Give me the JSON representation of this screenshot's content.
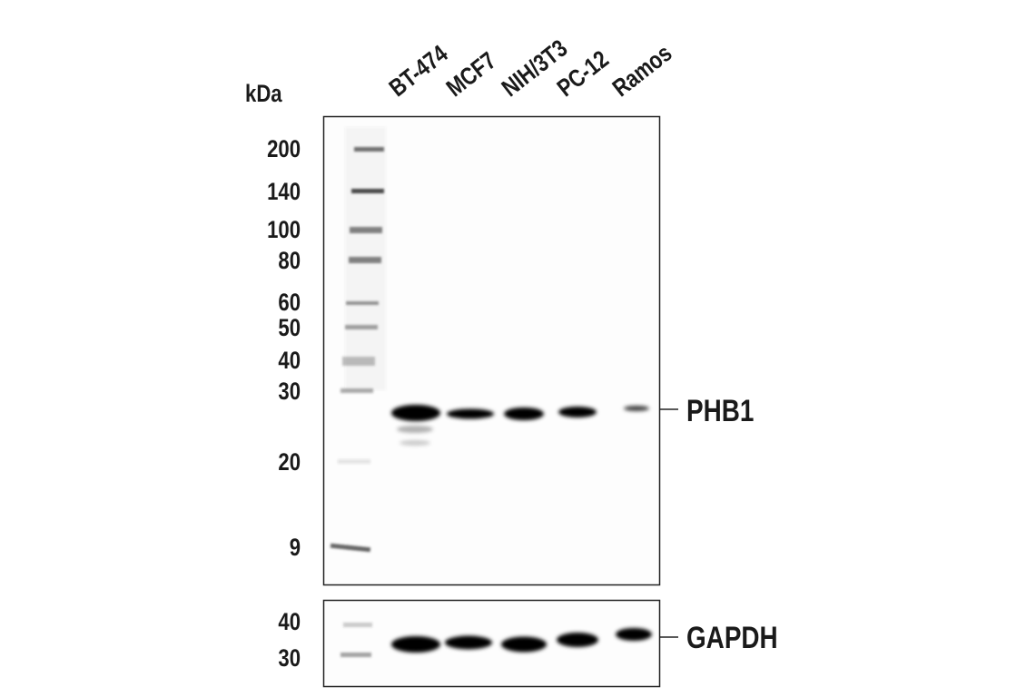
{
  "kda_label": "kDa",
  "lanes": [
    "BT-474",
    "MCF7",
    "NIH/3T3",
    "PC-12",
    "Ramos"
  ],
  "main_markers": [
    "200",
    "140",
    "100",
    "80",
    "60",
    "50",
    "40",
    "30",
    "20",
    "9"
  ],
  "gapdh_markers": [
    "40",
    "30"
  ],
  "targets": {
    "main": "PHB1",
    "loading": "GAPDH"
  }
}
